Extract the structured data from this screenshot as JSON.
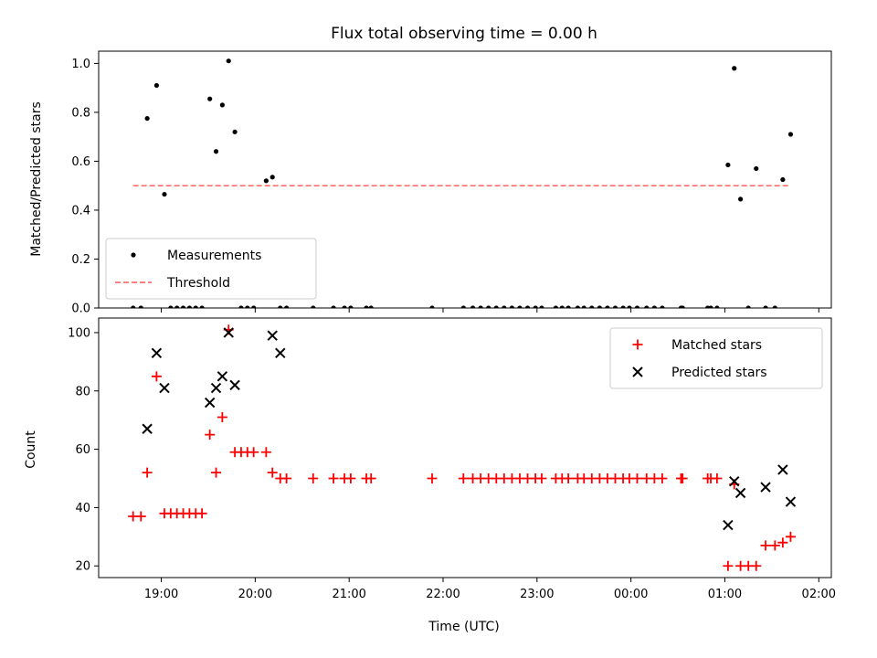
{
  "chart_data": [
    {
      "type": "scatter",
      "title": "Flux total observing time = 0.00 h",
      "xlabel": "",
      "ylabel": "Matched/Predicted stars",
      "xlim": [
        "18:20",
        "26:08"
      ],
      "ylim": [
        0,
        1.05
      ],
      "yticks": [
        "0.0",
        "0.2",
        "0.4",
        "0.6",
        "0.8",
        "1.0"
      ],
      "legend": "lower-left",
      "series": [
        {
          "name": "Measurements",
          "color": "#000000",
          "marker": "dot",
          "x": [
            "18:42",
            "18:47",
            "18:51",
            "18:57",
            "19:02",
            "19:06",
            "19:10",
            "19:14",
            "19:18",
            "19:22",
            "19:26",
            "19:31",
            "19:35",
            "19:39",
            "19:43",
            "19:47",
            "19:51",
            "19:55",
            "19:59",
            "20:07",
            "20:11",
            "20:16",
            "20:20",
            "20:37",
            "20:50",
            "20:57",
            "21:01",
            "21:11",
            "21:14",
            "21:53",
            "22:13",
            "22:19",
            "22:24",
            "22:29",
            "22:34",
            "22:39",
            "22:44",
            "22:49",
            "22:54",
            "22:59",
            "23:03",
            "23:12",
            "23:16",
            "23:20",
            "23:26",
            "23:30",
            "23:35",
            "23:40",
            "23:45",
            "23:50",
            "23:55",
            "23:59",
            "24:04",
            "24:10",
            "24:15",
            "24:20",
            "24:32",
            "24:33",
            "24:49",
            "24:51",
            "24:55",
            "25:02",
            "25:06",
            "25:10",
            "25:15",
            "25:20",
            "25:26",
            "25:32",
            "25:37",
            "25:42"
          ],
          "y": [
            0,
            0,
            0.775,
            0.91,
            0.465,
            0,
            0,
            0,
            0,
            0,
            0,
            0.855,
            0.64,
            0.83,
            1.01,
            0.72,
            0,
            0,
            0,
            0.52,
            0.535,
            0,
            0,
            0,
            0,
            0,
            0,
            0,
            0,
            0,
            0,
            0,
            0,
            0,
            0,
            0,
            0,
            0,
            0,
            0,
            0,
            0,
            0,
            0,
            0,
            0,
            0,
            0,
            0,
            0,
            0,
            0,
            0,
            0,
            0,
            0,
            0,
            0,
            0,
            0,
            0,
            0.585,
            0.98,
            0.445,
            0,
            0.57,
            0,
            0,
            0.525,
            0.71
          ]
        },
        {
          "name": "Threshold",
          "color": "#ff6f6f",
          "style": "dashed",
          "x": [
            "18:42",
            "25:42"
          ],
          "y": [
            0.5,
            0.5
          ]
        }
      ]
    },
    {
      "type": "scatter",
      "title": "",
      "xlabel": "Time (UTC)",
      "ylabel": "Count",
      "xlim": [
        "18:20",
        "26:08"
      ],
      "ylim": [
        16,
        105
      ],
      "yticks": [
        "20",
        "40",
        "60",
        "80",
        "100"
      ],
      "xticks": [
        "19:00",
        "20:00",
        "21:00",
        "22:00",
        "23:00",
        "00:00",
        "01:00",
        "02:00"
      ],
      "legend": "upper-right",
      "series": [
        {
          "name": "Matched stars",
          "color": "#ff0000",
          "marker": "plus",
          "x": [
            "18:42",
            "18:47",
            "18:51",
            "18:57",
            "19:02",
            "19:06",
            "19:10",
            "19:14",
            "19:18",
            "19:22",
            "19:26",
            "19:31",
            "19:35",
            "19:39",
            "19:43",
            "19:47",
            "19:51",
            "19:55",
            "19:59",
            "20:07",
            "20:11",
            "20:16",
            "20:20",
            "20:37",
            "20:50",
            "20:57",
            "21:01",
            "21:11",
            "21:14",
            "21:53",
            "22:13",
            "22:19",
            "22:24",
            "22:29",
            "22:34",
            "22:39",
            "22:44",
            "22:49",
            "22:54",
            "22:59",
            "23:03",
            "23:12",
            "23:16",
            "23:20",
            "23:26",
            "23:30",
            "23:35",
            "23:40",
            "23:45",
            "23:50",
            "23:55",
            "23:59",
            "24:04",
            "24:10",
            "24:15",
            "24:20",
            "24:32",
            "24:33",
            "24:49",
            "24:51",
            "24:55",
            "25:02",
            "25:06",
            "25:10",
            "25:15",
            "25:20",
            "25:26",
            "25:32",
            "25:37",
            "25:42"
          ],
          "y": [
            37,
            37,
            52,
            85,
            38,
            38,
            38,
            38,
            38,
            38,
            38,
            65,
            52,
            71,
            101,
            59,
            59,
            59,
            59,
            59,
            52,
            50,
            50,
            50,
            50,
            50,
            50,
            50,
            50,
            50,
            50,
            50,
            50,
            50,
            50,
            50,
            50,
            50,
            50,
            50,
            50,
            50,
            50,
            50,
            50,
            50,
            50,
            50,
            50,
            50,
            50,
            50,
            50,
            50,
            50,
            50,
            50,
            50,
            50,
            50,
            50,
            20,
            48,
            20,
            20,
            20,
            27,
            27,
            28,
            30
          ]
        },
        {
          "name": "Predicted stars",
          "color": "#000000",
          "marker": "x",
          "x": [
            "18:51",
            "18:57",
            "19:02",
            "19:31",
            "19:35",
            "19:39",
            "19:43",
            "19:47",
            "20:11",
            "20:16",
            "25:02",
            "25:06",
            "25:10",
            "25:26",
            "25:37",
            "25:42"
          ],
          "y": [
            67,
            93,
            81,
            76,
            81,
            85,
            100,
            82,
            99,
            93,
            34,
            49,
            45,
            47,
            53,
            42
          ]
        }
      ]
    }
  ]
}
